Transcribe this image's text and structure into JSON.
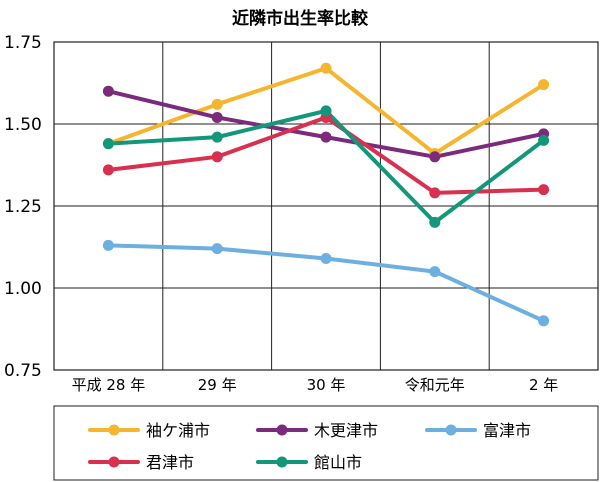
{
  "chart_data": {
    "type": "line",
    "title": "近隣市出生率比較",
    "xlabel": "",
    "ylabel": "",
    "categories": [
      "平成 28 年",
      "29 年",
      "30 年",
      "令和元年",
      "2 年"
    ],
    "ylim": [
      0.75,
      1.75
    ],
    "yticks": [
      "1.75",
      "1.50",
      "1.25",
      "1.00",
      "0.75"
    ],
    "grid": true,
    "legend_position": "bottom",
    "series": [
      {
        "name": "袖ケ浦市",
        "color": "#f5b52e",
        "values": [
          1.44,
          1.56,
          1.67,
          1.41,
          1.62
        ]
      },
      {
        "name": "木更津市",
        "color": "#7b2a7c",
        "values": [
          1.6,
          1.52,
          1.46,
          1.4,
          1.47
        ]
      },
      {
        "name": "富津市",
        "color": "#6dafdf",
        "values": [
          1.13,
          1.12,
          1.09,
          1.05,
          0.9
        ]
      },
      {
        "name": "君津市",
        "color": "#d8304f",
        "values": [
          1.36,
          1.4,
          1.52,
          1.29,
          1.3
        ]
      },
      {
        "name": "館山市",
        "color": "#13977a",
        "values": [
          1.44,
          1.46,
          1.54,
          1.2,
          1.45
        ]
      }
    ]
  }
}
